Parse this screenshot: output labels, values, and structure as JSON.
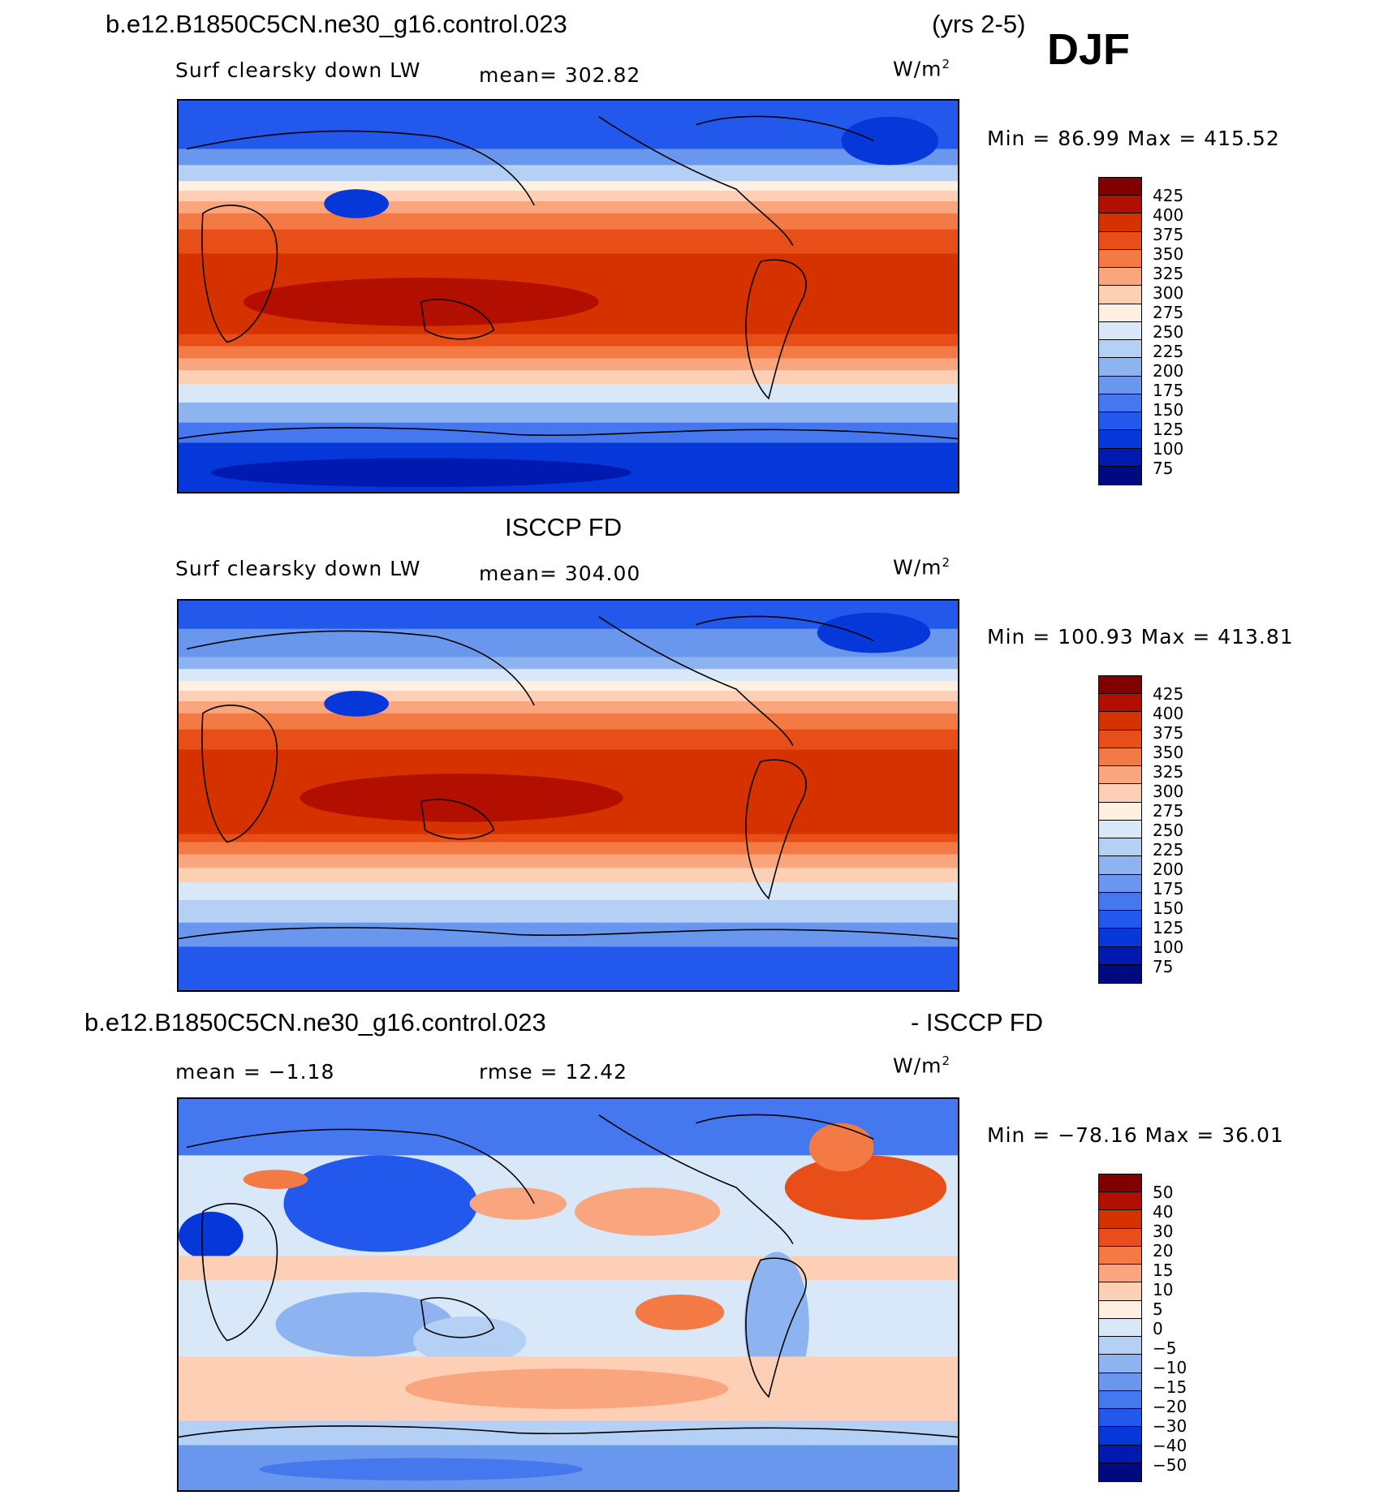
{
  "header": {
    "case_name": "b.e12.B1850C5CN.ne30_g16.control.023",
    "years": "(yrs 2-5)",
    "season": "DJF"
  },
  "panels": [
    {
      "id": "model",
      "title": "",
      "variable": "Surf clearsky down LW",
      "stat_text": "mean= 302.82",
      "stat2_text": "",
      "units": "W/m",
      "units_sup": "2",
      "minmax": "Min =   86.99 Max = 415.52",
      "colorbar": {
        "colors": [
          "#800000",
          "#b30f00",
          "#d63200",
          "#e84f18",
          "#f47a45",
          "#f9a57d",
          "#fdd0b5",
          "#fff0e2",
          "#d8e8f8",
          "#b4d0f4",
          "#8db4f0",
          "#6a97ee",
          "#4578ef",
          "#2258ec",
          "#0637d8",
          "#0019b0",
          "#000a80"
        ],
        "ticks": [
          "425",
          "400",
          "375",
          "350",
          "325",
          "300",
          "275",
          "250",
          "225",
          "200",
          "175",
          "150",
          "125",
          "100",
          "75"
        ]
      }
    },
    {
      "id": "obs",
      "title": "ISCCP FD",
      "variable": "Surf clearsky down LW",
      "stat_text": "mean= 304.00",
      "stat2_text": "",
      "units": "W/m",
      "units_sup": "2",
      "minmax": "Min = 100.93 Max = 413.81",
      "colorbar": {
        "colors": [
          "#800000",
          "#b30f00",
          "#d63200",
          "#e84f18",
          "#f47a45",
          "#f9a57d",
          "#fdd0b5",
          "#fff0e2",
          "#d8e8f8",
          "#b4d0f4",
          "#8db4f0",
          "#6a97ee",
          "#4578ef",
          "#2258ec",
          "#0637d8",
          "#0019b0",
          "#000a80"
        ],
        "ticks": [
          "425",
          "400",
          "375",
          "350",
          "325",
          "300",
          "275",
          "250",
          "225",
          "200",
          "175",
          "150",
          "125",
          "100",
          "75"
        ]
      }
    },
    {
      "id": "diff",
      "title_left": "b.e12.B1850C5CN.ne30_g16.control.023",
      "title_right": "- ISCCP FD",
      "variable": "",
      "stat_text": "mean =   −1.18",
      "stat2_text": "rmse =   12.42",
      "units": "W/m",
      "units_sup": "2",
      "minmax": "Min = −78.16 Max =   36.01",
      "colorbar": {
        "colors": [
          "#800000",
          "#b30f00",
          "#d63200",
          "#e84f18",
          "#f47a45",
          "#f9a57d",
          "#fdd0b5",
          "#fff0e2",
          "#d8e8f8",
          "#b4d0f4",
          "#8db4f0",
          "#6a97ee",
          "#4578ef",
          "#2258ec",
          "#0637d8",
          "#0019b0",
          "#000a80"
        ],
        "ticks": [
          "50",
          "40",
          "30",
          "20",
          "15",
          "10",
          "5",
          "0",
          "−5",
          "−10",
          "−15",
          "−20",
          "−30",
          "−40",
          "−50"
        ]
      }
    }
  ]
}
